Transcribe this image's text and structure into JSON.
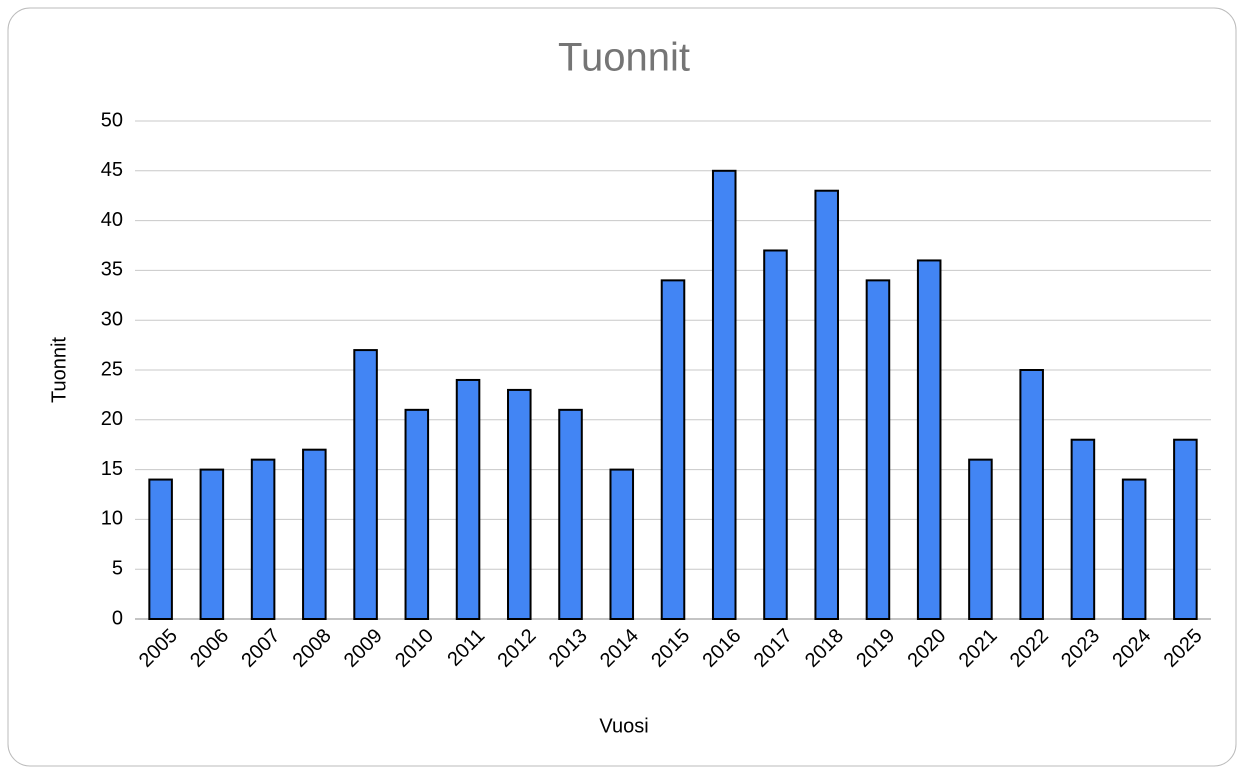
{
  "chart_data": {
    "type": "bar",
    "title": "Tuonnit",
    "x_label": "Vuosi",
    "y_label": "Tuonnit",
    "categories": [
      "2005",
      "2006",
      "2007",
      "2008",
      "2009",
      "2010",
      "2011",
      "2012",
      "2013",
      "2014",
      "2015",
      "2016",
      "2017",
      "2018",
      "2019",
      "2020",
      "2021",
      "2022",
      "2023",
      "2024",
      "2025"
    ],
    "values": [
      14,
      15,
      16,
      17,
      27,
      21,
      24,
      23,
      21,
      15,
      34,
      45,
      37,
      43,
      34,
      36,
      16,
      25,
      18,
      14,
      18
    ],
    "color": "#4285f4",
    "ylim": [
      0,
      50
    ],
    "yticks": [
      0,
      5,
      10,
      15,
      20,
      25,
      30,
      35,
      40,
      45,
      50
    ],
    "grid": true
  }
}
